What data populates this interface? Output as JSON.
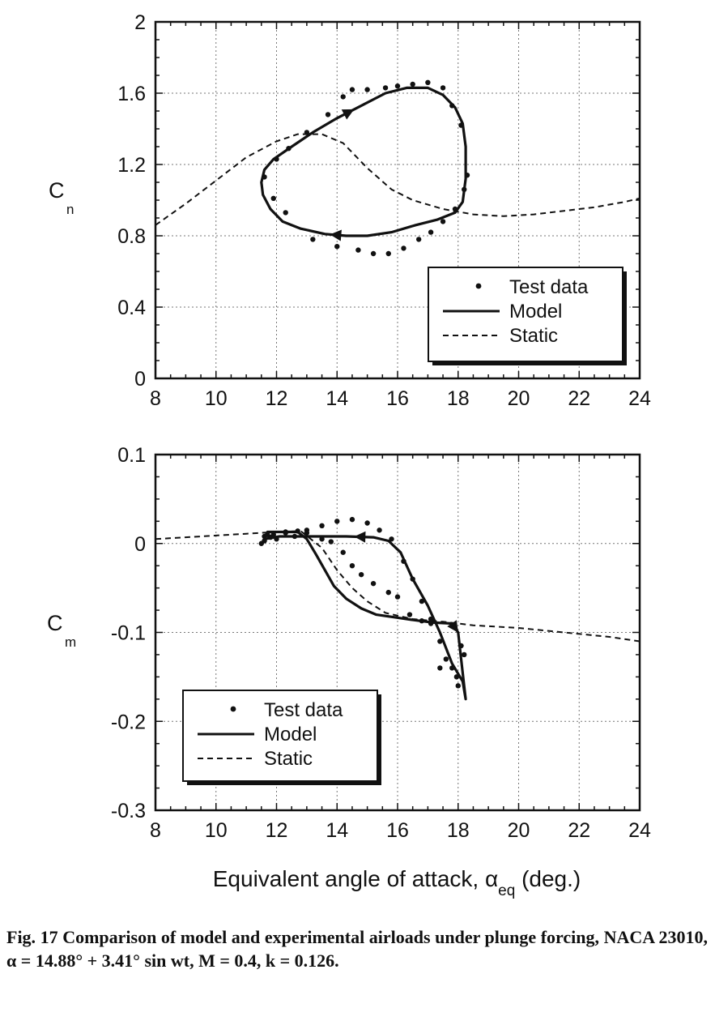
{
  "chart_data": [
    {
      "type": "line",
      "id": "cn",
      "ylabel": "C",
      "ylabel_sub": "n",
      "xlim": [
        8,
        24
      ],
      "ylim": [
        0,
        2
      ],
      "xticks": [
        "8",
        "10",
        "12",
        "14",
        "16",
        "18",
        "20",
        "22",
        "24"
      ],
      "yticks": [
        "0",
        "0.4",
        "0.8",
        "1.2",
        "1.6",
        "2"
      ],
      "grid": true,
      "legend": {
        "position": "lower-right",
        "entries": [
          "Test data",
          "Model",
          "Static"
        ]
      },
      "series": [
        {
          "name": "Test data",
          "style": "dots",
          "points": [
            [
              14.5,
              1.62
            ],
            [
              15,
              1.62
            ],
            [
              15.6,
              1.63
            ],
            [
              16,
              1.64
            ],
            [
              16.5,
              1.65
            ],
            [
              17,
              1.66
            ],
            [
              17.5,
              1.63
            ],
            [
              17.8,
              1.53
            ],
            [
              18.1,
              1.42
            ],
            [
              18.3,
              1.14
            ],
            [
              18.2,
              1.06
            ],
            [
              17.9,
              0.95
            ],
            [
              17.5,
              0.88
            ],
            [
              17.1,
              0.82
            ],
            [
              16.7,
              0.78
            ],
            [
              16.2,
              0.73
            ],
            [
              15.7,
              0.7
            ],
            [
              15.2,
              0.7
            ],
            [
              14.7,
              0.72
            ],
            [
              14,
              0.74
            ],
            [
              13.2,
              0.78
            ],
            [
              12.3,
              0.93
            ],
            [
              11.9,
              1.01
            ],
            [
              11.6,
              1.13
            ],
            [
              12,
              1.23
            ],
            [
              12.4,
              1.29
            ],
            [
              13,
              1.38
            ],
            [
              13.7,
              1.48
            ],
            [
              14.2,
              1.58
            ]
          ]
        },
        {
          "name": "Model",
          "style": "solid",
          "closed": true,
          "points": [
            [
              11.5,
              1.1
            ],
            [
              11.6,
              1.17
            ],
            [
              11.9,
              1.23
            ],
            [
              12.5,
              1.3
            ],
            [
              13.2,
              1.38
            ],
            [
              14,
              1.46
            ],
            [
              14.8,
              1.53
            ],
            [
              15.6,
              1.6
            ],
            [
              16.3,
              1.63
            ],
            [
              17,
              1.63
            ],
            [
              17.5,
              1.59
            ],
            [
              17.9,
              1.52
            ],
            [
              18.15,
              1.43
            ],
            [
              18.25,
              1.3
            ],
            [
              18.25,
              1.12
            ],
            [
              18.15,
              0.99
            ],
            [
              17.9,
              0.93
            ],
            [
              17.3,
              0.89
            ],
            [
              16.6,
              0.86
            ],
            [
              15.8,
              0.82
            ],
            [
              15,
              0.8
            ],
            [
              14.3,
              0.8
            ],
            [
              13.6,
              0.81
            ],
            [
              12.8,
              0.84
            ],
            [
              12.2,
              0.88
            ],
            [
              11.8,
              0.95
            ],
            [
              11.55,
              1.03
            ]
          ]
        },
        {
          "name": "Static",
          "style": "dashed",
          "points": [
            [
              8,
              0.86
            ],
            [
              9,
              0.98
            ],
            [
              10,
              1.11
            ],
            [
              11,
              1.24
            ],
            [
              12,
              1.33
            ],
            [
              12.7,
              1.37
            ],
            [
              13.5,
              1.37
            ],
            [
              14.2,
              1.32
            ],
            [
              15,
              1.18
            ],
            [
              15.8,
              1.06
            ],
            [
              16.5,
              1
            ],
            [
              17.5,
              0.95
            ],
            [
              18.5,
              0.92
            ],
            [
              19.5,
              0.91
            ],
            [
              20.5,
              0.92
            ],
            [
              21.5,
              0.94
            ],
            [
              22.5,
              0.96
            ],
            [
              23.5,
              0.99
            ],
            [
              24,
              1.01
            ]
          ]
        }
      ]
    },
    {
      "type": "line",
      "id": "cm",
      "ylabel": "C",
      "ylabel_sub": "m",
      "xlabel": "Equivalent angle of attack, α",
      "xlabel_sub": "eq",
      "xlabel_suffix": " (deg.)",
      "xlim": [
        8,
        24
      ],
      "ylim": [
        -0.3,
        0.1
      ],
      "xticks": [
        "8",
        "10",
        "12",
        "14",
        "16",
        "18",
        "20",
        "22",
        "24"
      ],
      "yticks": [
        "-0.3",
        "-0.2",
        "-0.1",
        "0",
        "0.1"
      ],
      "grid": true,
      "legend": {
        "position": "lower-left",
        "entries": [
          "Test data",
          "Model",
          "Static"
        ]
      },
      "series": [
        {
          "name": "Test data",
          "style": "dots",
          "points": [
            [
              11.5,
              0
            ],
            [
              11.6,
              0.003
            ],
            [
              11.7,
              0.01
            ],
            [
              11.8,
              0.007
            ],
            [
              12,
              0.005
            ],
            [
              12.3,
              0.012
            ],
            [
              12.6,
              0.008
            ],
            [
              13,
              0.015
            ],
            [
              13.5,
              0.02
            ],
            [
              14,
              0.025
            ],
            [
              14.5,
              0.027
            ],
            [
              15,
              0.023
            ],
            [
              15.4,
              0.015
            ],
            [
              15.8,
              0.005
            ],
            [
              16.2,
              -0.02
            ],
            [
              16.5,
              -0.04
            ],
            [
              16.8,
              -0.065
            ],
            [
              17.1,
              -0.085
            ],
            [
              17.4,
              -0.11
            ],
            [
              17.6,
              -0.13
            ],
            [
              17.8,
              -0.14
            ],
            [
              17.95,
              -0.15
            ],
            [
              18.1,
              -0.115
            ],
            [
              18.2,
              -0.125
            ],
            [
              18,
              -0.16
            ],
            [
              17.4,
              -0.14
            ],
            [
              17.1,
              -0.09
            ],
            [
              16.8,
              -0.087
            ],
            [
              16.4,
              -0.08
            ],
            [
              16,
              -0.06
            ],
            [
              15.7,
              -0.055
            ],
            [
              15.2,
              -0.045
            ],
            [
              14.8,
              -0.035
            ],
            [
              14.5,
              -0.025
            ],
            [
              14.2,
              -0.01
            ],
            [
              13.8,
              0.002
            ],
            [
              13.5,
              0.005
            ],
            [
              13,
              0.012
            ],
            [
              12.7,
              0.014
            ],
            [
              12.3,
              0.013
            ],
            [
              11.9,
              0.01
            ],
            [
              11.6,
              0.008
            ]
          ]
        },
        {
          "name": "Model",
          "style": "solid",
          "closed": true,
          "points": [
            [
              11.6,
              0.005
            ],
            [
              11.7,
              0.013
            ],
            [
              12.7,
              0.013
            ],
            [
              13,
              0.005
            ],
            [
              13.3,
              -0.012
            ],
            [
              13.6,
              -0.03
            ],
            [
              13.9,
              -0.048
            ],
            [
              14.3,
              -0.062
            ],
            [
              14.8,
              -0.073
            ],
            [
              15.3,
              -0.08
            ],
            [
              15.9,
              -0.083
            ],
            [
              16.5,
              -0.086
            ],
            [
              17.2,
              -0.089
            ],
            [
              17.8,
              -0.09
            ],
            [
              18,
              -0.1
            ],
            [
              18.1,
              -0.13
            ],
            [
              18.2,
              -0.16
            ],
            [
              18.25,
              -0.175
            ],
            [
              18.15,
              -0.155
            ],
            [
              17.8,
              -0.135
            ],
            [
              17.4,
              -0.1
            ],
            [
              17,
              -0.07
            ],
            [
              16.5,
              -0.04
            ],
            [
              16.1,
              -0.01
            ],
            [
              15.7,
              0.003
            ],
            [
              15.2,
              0.007
            ],
            [
              14.3,
              0.008
            ],
            [
              13.5,
              0.008
            ],
            [
              12.8,
              0.008
            ],
            [
              12.1,
              0.008
            ]
          ]
        },
        {
          "name": "Static",
          "style": "dashed",
          "points": [
            [
              8,
              0.005
            ],
            [
              9,
              0.007
            ],
            [
              10,
              0.009
            ],
            [
              11,
              0.011
            ],
            [
              12,
              0.013
            ],
            [
              12.8,
              0.014
            ],
            [
              13.5,
              -0.005
            ],
            [
              14,
              -0.03
            ],
            [
              14.5,
              -0.05
            ],
            [
              15,
              -0.065
            ],
            [
              15.6,
              -0.078
            ],
            [
              16.5,
              -0.085
            ],
            [
              17.5,
              -0.088
            ],
            [
              18.5,
              -0.092
            ],
            [
              20,
              -0.095
            ],
            [
              21.5,
              -0.1
            ],
            [
              23,
              -0.105
            ],
            [
              24,
              -0.11
            ]
          ]
        }
      ]
    }
  ],
  "caption": "Fig. 17   Comparison of model and experimental airloads under plunge forcing, NACA 23010, α = 14.88° + 3.41° sin wt, M = 0.4, k = 0.126."
}
